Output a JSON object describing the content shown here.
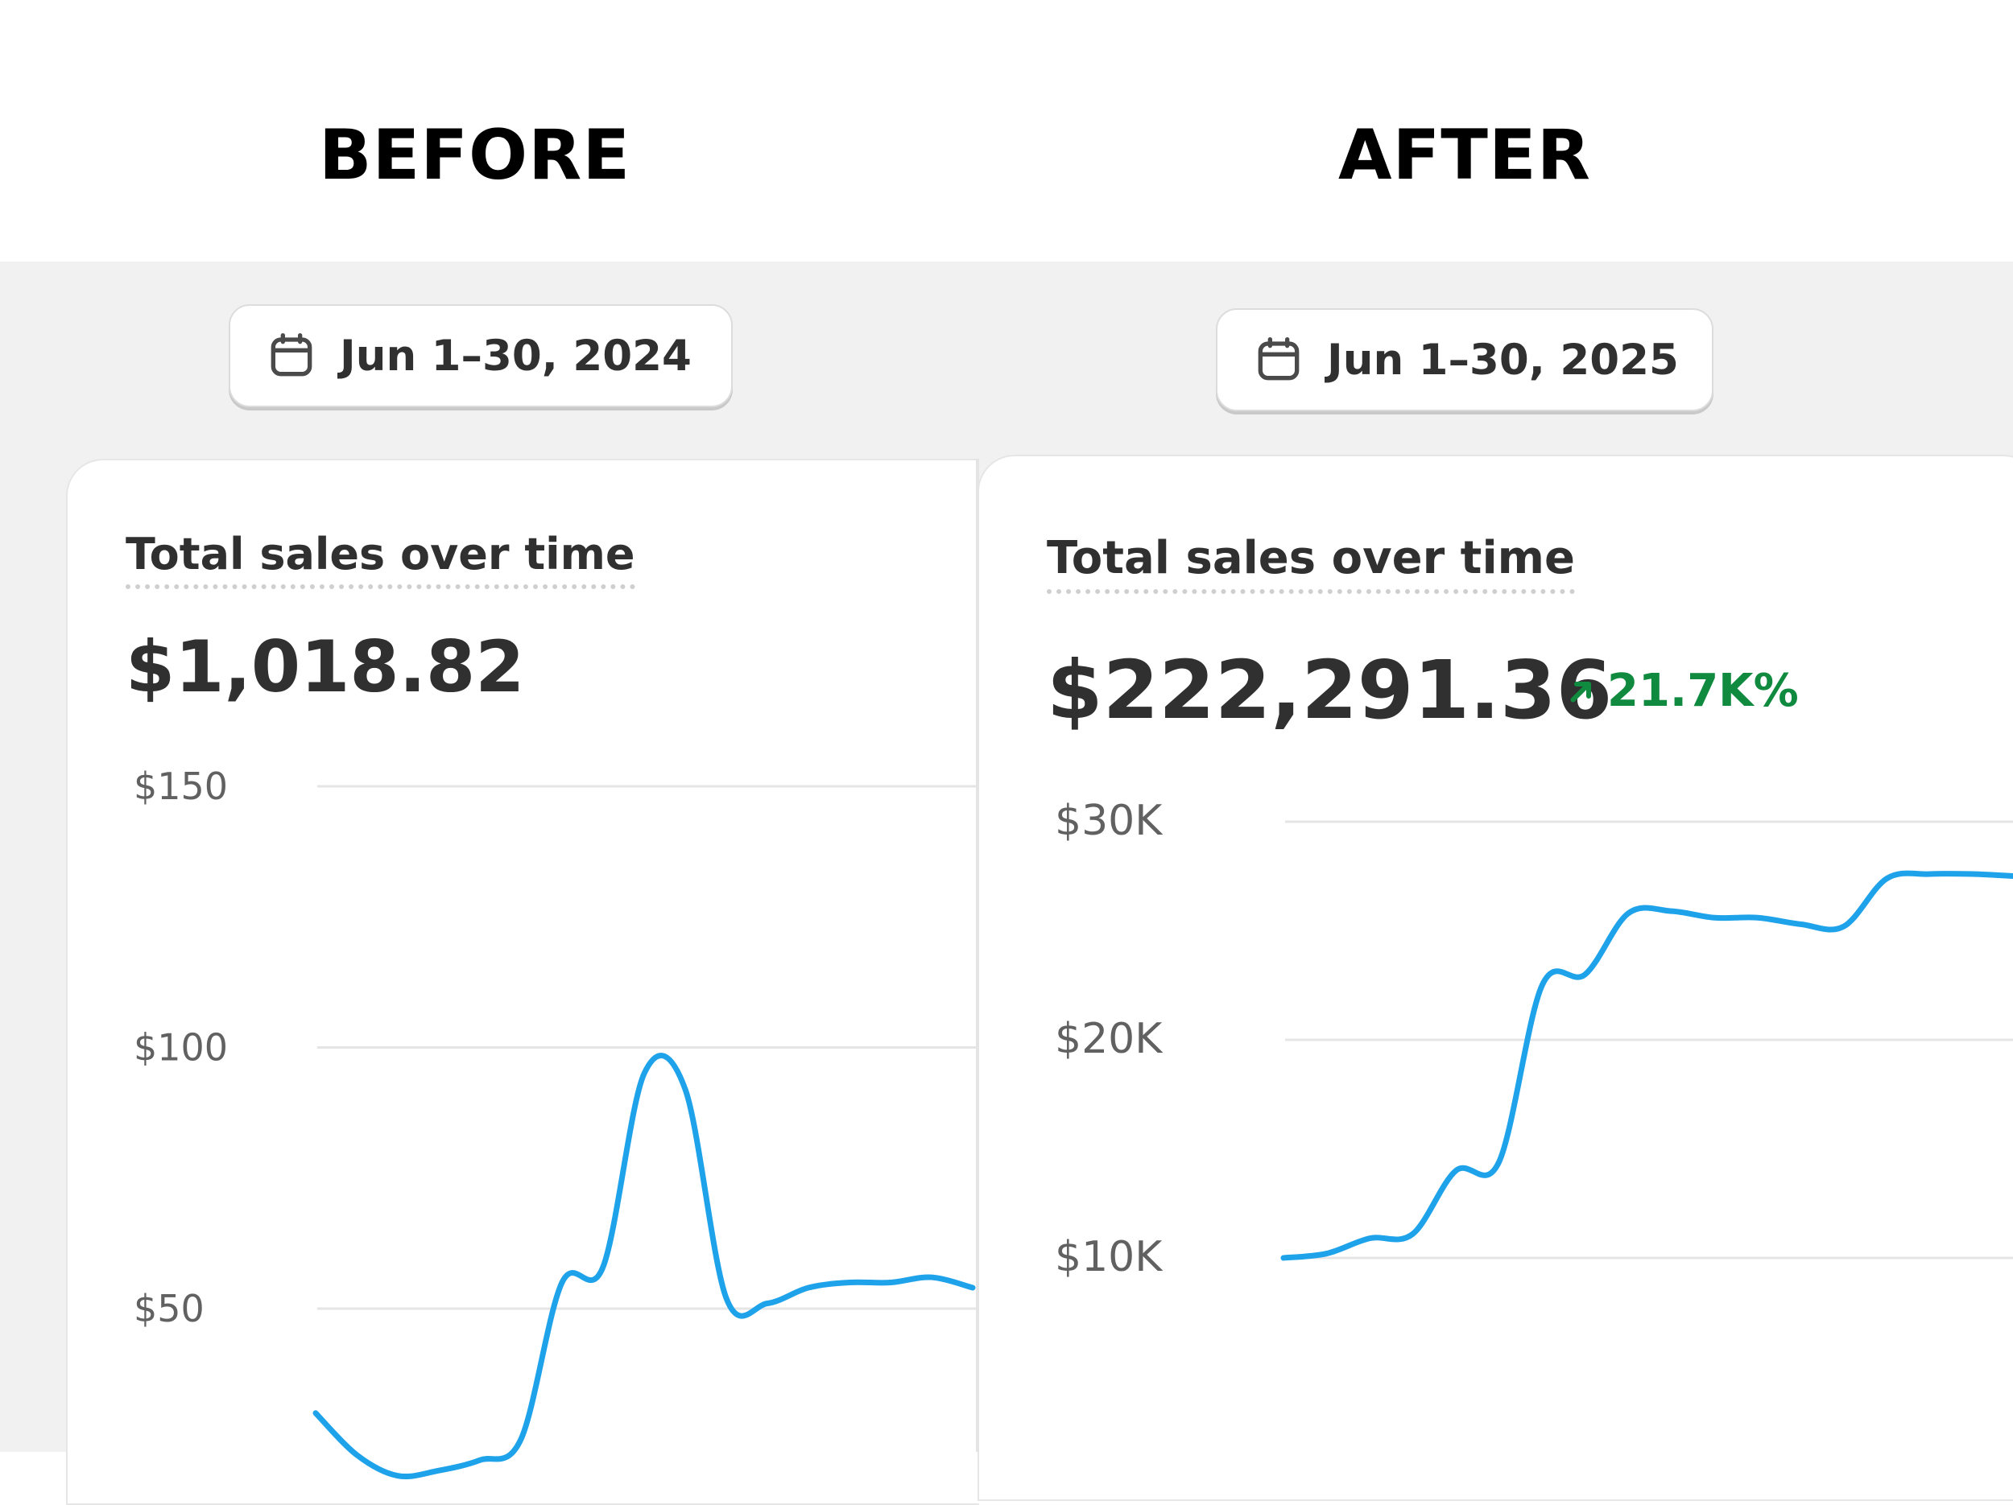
{
  "headings": {
    "before": "BEFORE",
    "after": "AFTER"
  },
  "before": {
    "date_range": "Jun 1–30, 2024",
    "title": "Total sales over time",
    "total": "$1,018.82",
    "icons": {
      "date": "calendar-icon"
    }
  },
  "after": {
    "date_range": "Jun 1–30, 2025",
    "title": "Total sales over time",
    "total": "$222,291.36",
    "change": "21.7K%",
    "change_color": "#0f8a3f",
    "icons": {
      "date": "calendar-icon",
      "change": "arrow-up-right-icon"
    }
  },
  "colors": {
    "line": "#1ea2ea",
    "grid": "#e5e5e5",
    "page_bg": "#f1f1f1"
  },
  "chart_data": [
    {
      "type": "line",
      "title": "",
      "y_tick_labels": [
        "$150",
        "$100",
        "$50"
      ],
      "y_ticks": [
        150,
        100,
        50
      ],
      "ylim": [
        0,
        150
      ],
      "x": [
        0,
        1,
        2,
        3,
        4,
        5,
        6,
        7,
        8,
        9,
        10,
        11,
        12,
        13,
        14,
        15,
        16
      ],
      "series": [
        {
          "values": [
            30,
            22,
            18,
            19,
            21,
            25,
            55,
            58,
            95,
            92,
            52,
            51,
            54,
            55,
            55,
            56,
            54
          ]
        }
      ]
    },
    {
      "type": "line",
      "title": "",
      "y_tick_labels": [
        "$30K",
        "$20K",
        "$10K"
      ],
      "y_ticks": [
        30000,
        20000,
        10000
      ],
      "ylim": [
        10000,
        30000
      ],
      "x": [
        0,
        1,
        2,
        3,
        4,
        5,
        6,
        7,
        8,
        9,
        10,
        11,
        12,
        13,
        14,
        15,
        16,
        17
      ],
      "series": [
        {
          "values": [
            10000,
            10200,
            10900,
            11100,
            14000,
            14400,
            22500,
            23000,
            25800,
            25900,
            25600,
            25600,
            25300,
            25200,
            27400,
            27600,
            27600,
            27500
          ]
        }
      ]
    }
  ]
}
